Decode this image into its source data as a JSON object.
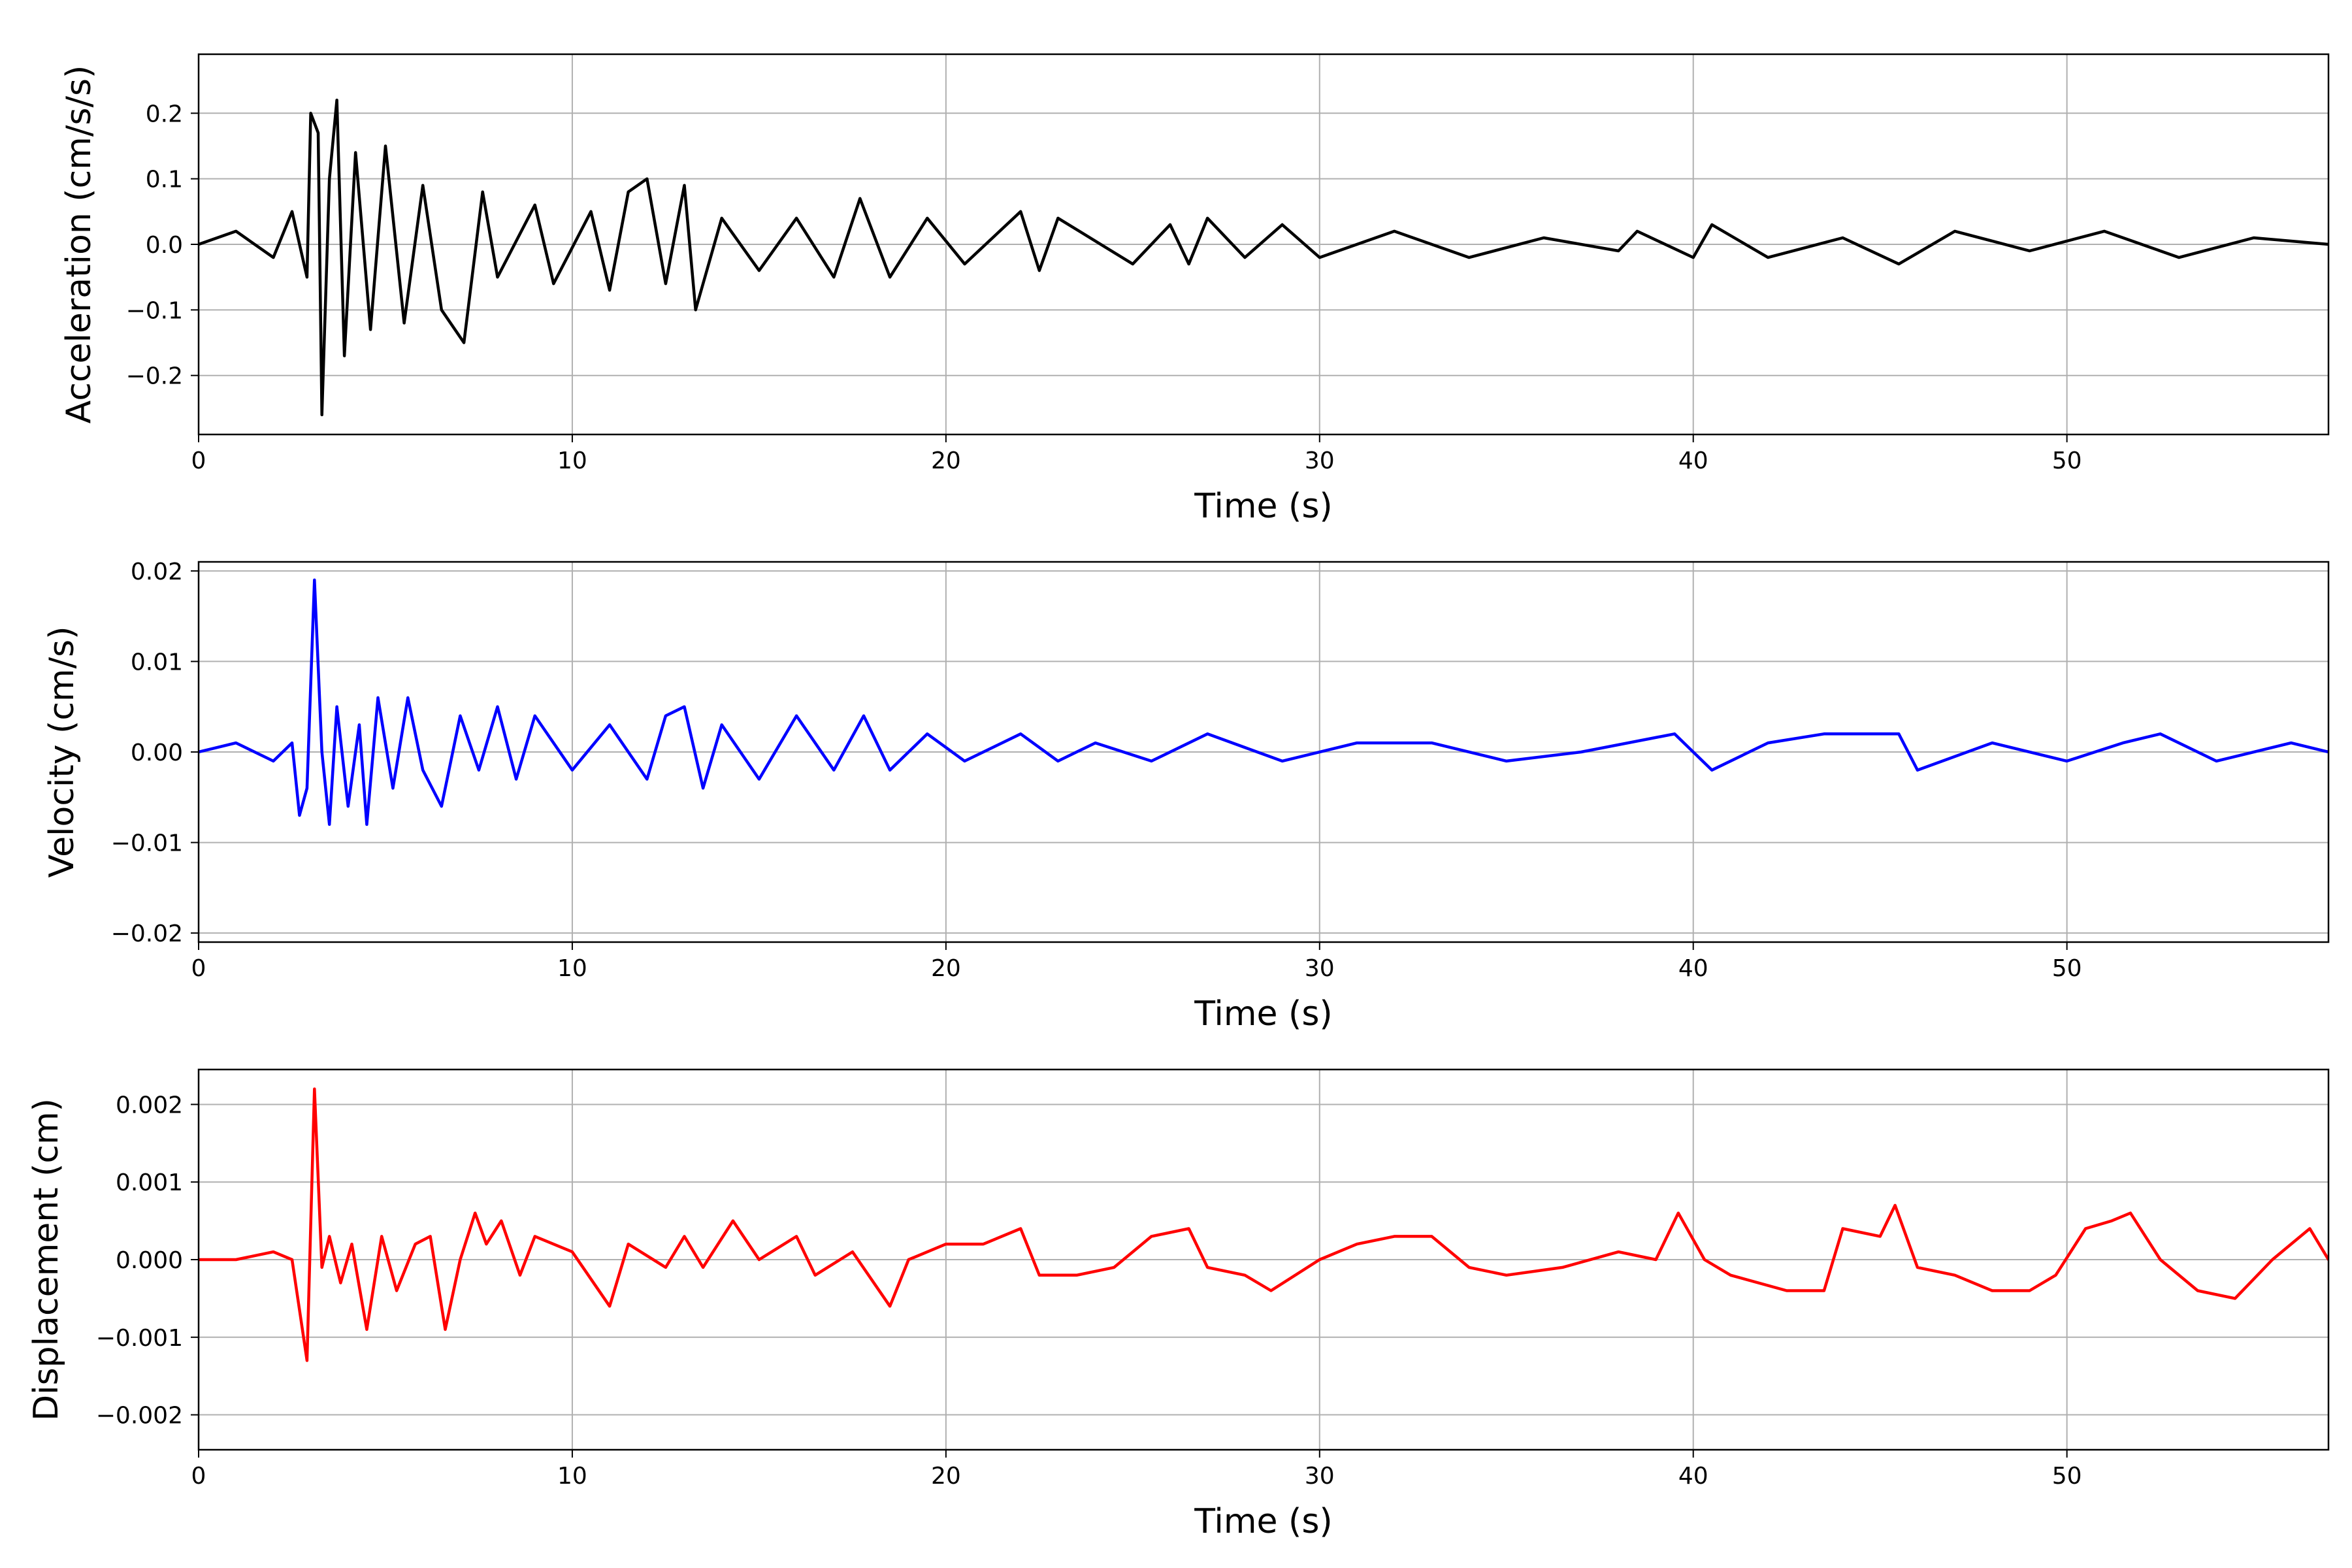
{
  "chart_data": [
    {
      "type": "line",
      "xlabel": "Time (s)",
      "ylabel": "Acceleration (cm/s/s)",
      "xlim": [
        0,
        57
      ],
      "ylim": [
        -0.29,
        0.29
      ],
      "xticks": [
        0,
        10,
        20,
        30,
        40,
        50
      ],
      "xtick_labels": [
        "0",
        "10",
        "20",
        "30",
        "40",
        "50"
      ],
      "yticks": [
        -0.2,
        -0.1,
        0.0,
        0.1,
        0.2
      ],
      "ytick_labels": [
        "−0.2",
        "−0.1",
        "0.0",
        "0.1",
        "0.2"
      ],
      "grid": true,
      "series": [
        {
          "color": "#000000",
          "x": [
            0,
            1,
            2,
            2.5,
            2.9,
            3.0,
            3.2,
            3.3,
            3.5,
            3.7,
            3.9,
            4.2,
            4.6,
            5.0,
            5.5,
            6.0,
            6.5,
            7.1,
            7.6,
            8.0,
            9.0,
            9.5,
            10.5,
            11.0,
            11.5,
            12.0,
            12.5,
            13.0,
            13.3,
            14.0,
            15.0,
            16.0,
            17.0,
            17.7,
            18.5,
            19.5,
            20.5,
            22.0,
            22.5,
            23.0,
            25.0,
            26.0,
            26.5,
            27.0,
            28.0,
            29.0,
            30.0,
            32.0,
            34.0,
            36.0,
            38.0,
            38.5,
            40.0,
            40.5,
            42.0,
            44.0,
            45.5,
            47.0,
            49.0,
            51.0,
            53.0,
            55.0,
            57.0
          ],
          "y": [
            0.0,
            0.02,
            -0.02,
            0.05,
            -0.05,
            0.2,
            0.17,
            -0.26,
            0.1,
            0.22,
            -0.17,
            0.14,
            -0.13,
            0.15,
            -0.12,
            0.09,
            -0.1,
            -0.15,
            0.08,
            -0.05,
            0.06,
            -0.06,
            0.05,
            -0.07,
            0.08,
            0.1,
            -0.06,
            0.09,
            -0.1,
            0.04,
            -0.04,
            0.04,
            -0.05,
            0.07,
            -0.05,
            0.04,
            -0.03,
            0.05,
            -0.04,
            0.04,
            -0.03,
            0.03,
            -0.03,
            0.04,
            -0.02,
            0.03,
            -0.02,
            0.02,
            -0.02,
            0.01,
            -0.01,
            0.02,
            -0.02,
            0.03,
            -0.02,
            0.01,
            -0.03,
            0.02,
            -0.01,
            0.02,
            -0.02,
            0.01,
            0.0
          ]
        }
      ]
    },
    {
      "type": "line",
      "xlabel": "Time (s)",
      "ylabel": "Velocity (cm/s)",
      "xlim": [
        0,
        57
      ],
      "ylim": [
        -0.021,
        0.021
      ],
      "xticks": [
        0,
        10,
        20,
        30,
        40,
        50
      ],
      "xtick_labels": [
        "0",
        "10",
        "20",
        "30",
        "40",
        "50"
      ],
      "yticks": [
        -0.02,
        -0.01,
        0.0,
        0.01,
        0.02
      ],
      "ytick_labels": [
        "−0.02",
        "−0.01",
        "0.00",
        "0.01",
        "0.02"
      ],
      "grid": true,
      "series": [
        {
          "color": "#0000ff",
          "x": [
            0,
            1,
            2,
            2.5,
            2.7,
            2.9,
            3.1,
            3.3,
            3.5,
            3.7,
            4.0,
            4.3,
            4.5,
            4.8,
            5.2,
            5.6,
            6.0,
            6.5,
            7.0,
            7.5,
            8.0,
            8.5,
            9.0,
            10.0,
            11.0,
            12.0,
            12.5,
            13.0,
            13.5,
            14.0,
            15.0,
            16.0,
            17.0,
            17.8,
            18.5,
            19.5,
            20.5,
            22.0,
            23.0,
            24.0,
            25.5,
            27.0,
            29.0,
            31.0,
            33.0,
            35.0,
            37.0,
            39.5,
            40.5,
            42.0,
            43.5,
            45.5,
            46.0,
            48.0,
            50.0,
            51.5,
            52.5,
            54.0,
            56.0,
            57.0
          ],
          "y": [
            0.0,
            0.001,
            -0.001,
            0.001,
            -0.007,
            -0.004,
            0.019,
            0.0,
            -0.008,
            0.005,
            -0.006,
            0.003,
            -0.008,
            0.006,
            -0.004,
            0.006,
            -0.002,
            -0.006,
            0.004,
            -0.002,
            0.005,
            -0.003,
            0.004,
            -0.002,
            0.003,
            -0.003,
            0.004,
            0.005,
            -0.004,
            0.003,
            -0.003,
            0.004,
            -0.002,
            0.004,
            -0.002,
            0.002,
            -0.001,
            0.002,
            -0.001,
            0.001,
            -0.001,
            0.002,
            -0.001,
            0.001,
            0.001,
            -0.001,
            0.0,
            0.002,
            -0.002,
            0.001,
            0.002,
            0.002,
            -0.002,
            0.001,
            -0.001,
            0.001,
            0.002,
            -0.001,
            0.001,
            0.0
          ]
        }
      ]
    },
    {
      "type": "line",
      "xlabel": "Time (s)",
      "ylabel": "Displacement (cm)",
      "xlim": [
        0,
        57
      ],
      "ylim": [
        -0.00245,
        0.00245
      ],
      "xticks": [
        0,
        10,
        20,
        30,
        40,
        50
      ],
      "xtick_labels": [
        "0",
        "10",
        "20",
        "30",
        "40",
        "50"
      ],
      "yticks": [
        -0.002,
        -0.001,
        0.0,
        0.001,
        0.002
      ],
      "ytick_labels": [
        "−0.002",
        "−0.001",
        "0.000",
        "0.001",
        "0.002"
      ],
      "grid": true,
      "series": [
        {
          "color": "#ff0000",
          "x": [
            0,
            1,
            2,
            2.5,
            2.9,
            3.1,
            3.3,
            3.5,
            3.8,
            4.1,
            4.5,
            4.9,
            5.3,
            5.8,
            6.2,
            6.6,
            7.0,
            7.4,
            7.7,
            8.1,
            8.6,
            9.0,
            10.0,
            11.0,
            11.5,
            12.5,
            13.0,
            13.5,
            14.3,
            15.0,
            16.0,
            16.5,
            17.5,
            18.5,
            19.0,
            20.0,
            21.0,
            22.0,
            22.5,
            23.5,
            24.5,
            25.5,
            26.5,
            27.0,
            28.0,
            28.7,
            30.0,
            31.0,
            32.0,
            33.0,
            34.0,
            35.0,
            36.5,
            38.0,
            39.0,
            39.6,
            40.3,
            41.0,
            42.5,
            43.5,
            44.0,
            45.0,
            45.4,
            46.0,
            47.0,
            48.0,
            49.0,
            49.7,
            50.5,
            51.2,
            51.7,
            52.5,
            53.5,
            54.5,
            55.5,
            56.5,
            57.0
          ],
          "y": [
            0.0,
            0.0,
            0.0001,
            0.0,
            -0.0013,
            0.0022,
            -0.0001,
            0.0003,
            -0.0003,
            0.0002,
            -0.0009,
            0.0003,
            -0.0004,
            0.0002,
            0.0003,
            -0.0009,
            0.0,
            0.0006,
            0.0002,
            0.0005,
            -0.0002,
            0.0003,
            0.0001,
            -0.0006,
            0.0002,
            -0.0001,
            0.0003,
            -0.0001,
            0.0005,
            0.0,
            0.0003,
            -0.0002,
            0.0001,
            -0.0006,
            0.0,
            0.0002,
            0.0002,
            0.0004,
            -0.0002,
            -0.0002,
            -0.0001,
            0.0003,
            0.0004,
            -0.0001,
            -0.0002,
            -0.0004,
            0.0,
            0.0002,
            0.0003,
            0.0003,
            -0.0001,
            -0.0002,
            -0.0001,
            0.0001,
            0.0,
            0.0006,
            0.0,
            -0.0002,
            -0.0004,
            -0.0004,
            0.0004,
            0.0003,
            0.0007,
            -0.0001,
            -0.0002,
            -0.0004,
            -0.0004,
            -0.0002,
            0.0004,
            0.0005,
            0.0006,
            0.0,
            -0.0004,
            -0.0005,
            0.0,
            0.0004,
            0.0
          ]
        }
      ]
    }
  ]
}
